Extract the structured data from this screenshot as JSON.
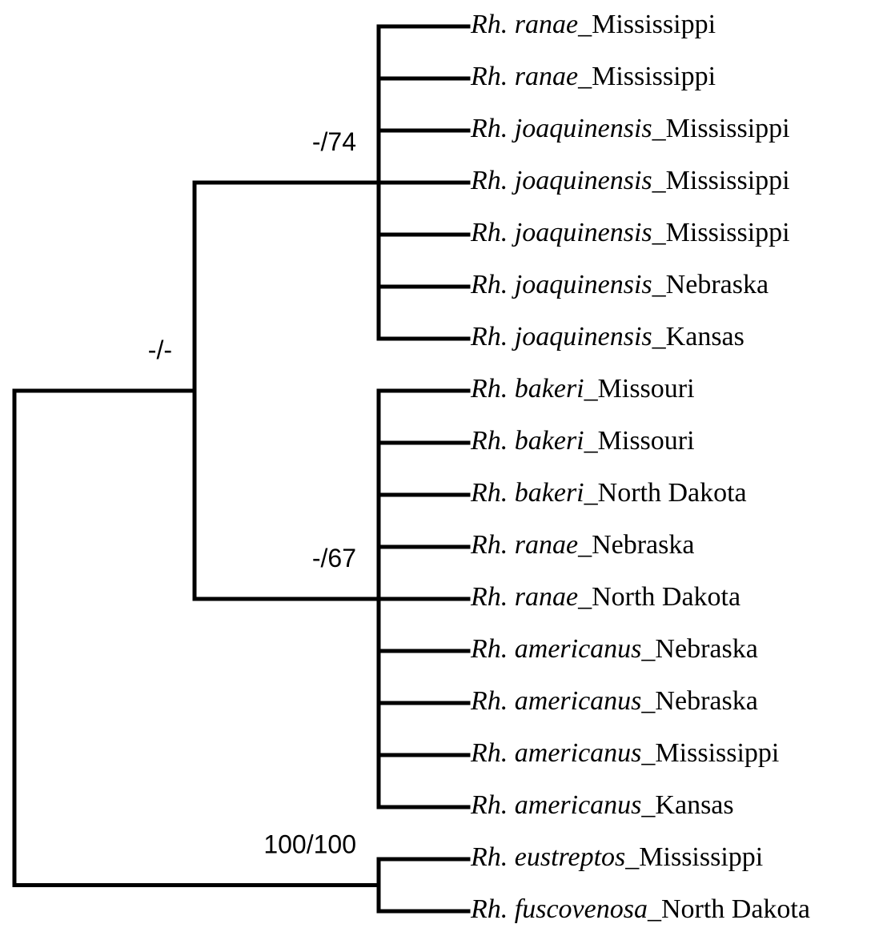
{
  "tree": {
    "children": [
      {
        "support": "-/-",
        "children": [
          {
            "support": "-/74",
            "leaves": [
              {
                "italic": "Rh. ranae",
                "rest": "_Mississippi"
              },
              {
                "italic": "Rh. ranae",
                "rest": "_Mississippi"
              },
              {
                "italic": "Rh. joaquinensis",
                "rest": "_Mississippi"
              },
              {
                "italic": "Rh. joaquinensis",
                "rest": "_Mississippi"
              },
              {
                "italic": "Rh. joaquinensis",
                "rest": "_Mississippi"
              },
              {
                "italic": "Rh. joaquinensis",
                "rest": "_Nebraska"
              },
              {
                "italic": "Rh. joaquinensis",
                "rest": "_Kansas"
              }
            ]
          },
          {
            "support": "-/67",
            "leaves": [
              {
                "italic": "Rh. bakeri",
                "rest": "_Missouri"
              },
              {
                "italic": "Rh. bakeri",
                "rest": "_Missouri"
              },
              {
                "italic": "Rh. bakeri",
                "rest": "_North Dakota"
              },
              {
                "italic": "Rh. ranae",
                "rest": "_Nebraska"
              },
              {
                "italic": "Rh. ranae",
                "rest": "_North Dakota"
              },
              {
                "italic": "Rh. americanus",
                "rest": "_Nebraska"
              },
              {
                "italic": "Rh. americanus",
                "rest": "_Nebraska"
              },
              {
                "italic": "Rh. americanus",
                "rest": "_Mississippi"
              },
              {
                "italic": "Rh. americanus",
                "rest": "_Kansas"
              }
            ]
          }
        ]
      },
      {
        "support": "100/100",
        "leaves": [
          {
            "italic": "Rh. eustreptos",
            "rest": "_Mississippi"
          },
          {
            "italic": "Rh. fuscovenosa",
            "rest": "_North Dakota"
          }
        ]
      }
    ]
  }
}
